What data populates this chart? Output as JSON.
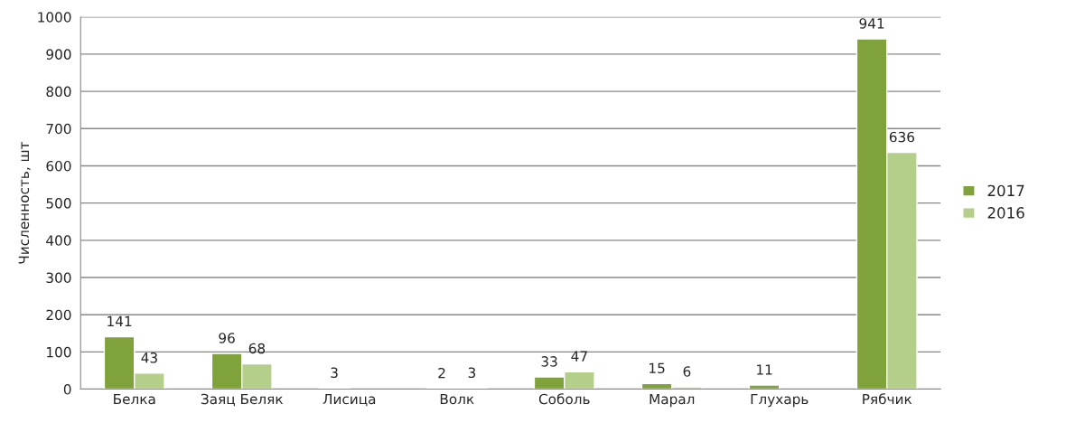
{
  "chart_data": {
    "type": "bar",
    "ylabel": "Численность, шт",
    "categories": [
      "Белка",
      "Заяц Беляк",
      "Лисица",
      "Волк",
      "Соболь",
      "Марал",
      "Глухарь",
      "Рябчик"
    ],
    "series": [
      {
        "name": "2017",
        "color": "#7fa33a",
        "values": [
          141,
          96,
          3,
          2,
          33,
          15,
          11,
          941
        ]
      },
      {
        "name": "2016",
        "color": "#b4cf8a",
        "values": [
          43,
          68,
          null,
          3,
          47,
          6,
          null,
          636
        ]
      }
    ],
    "ylim": [
      0,
      1000
    ],
    "yticks": [
      0,
      100,
      200,
      300,
      400,
      500,
      600,
      700,
      800,
      900,
      1000
    ],
    "grid": "y",
    "legend": "right",
    "data_labels": true
  }
}
